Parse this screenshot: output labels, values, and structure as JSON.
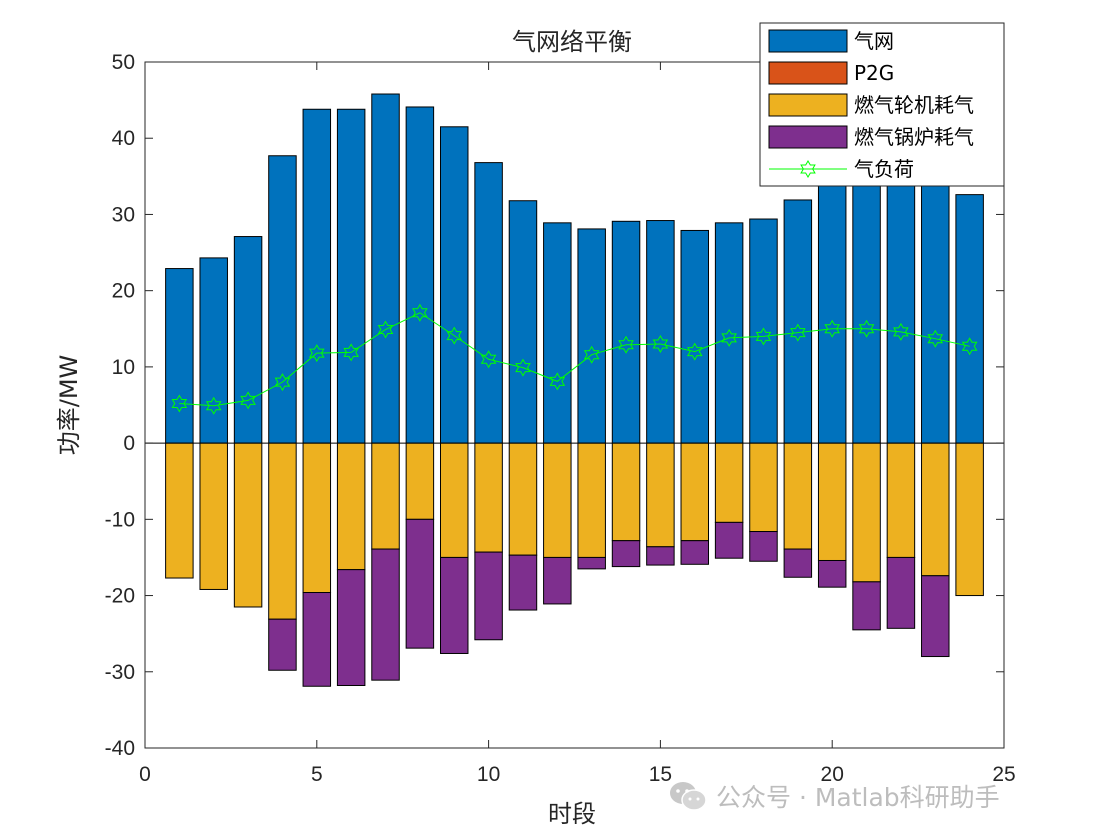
{
  "chart_data": {
    "type": "bar",
    "title": "气网络平衡",
    "xlabel": "时段",
    "ylabel": "功率/MW",
    "xlim": [
      0,
      25
    ],
    "ylim": [
      -40,
      50
    ],
    "xticks": [
      0,
      5,
      10,
      15,
      20,
      25
    ],
    "yticks": [
      -40,
      -30,
      -20,
      -10,
      0,
      10,
      20,
      30,
      40,
      50
    ],
    "x": [
      1,
      2,
      3,
      4,
      5,
      6,
      7,
      8,
      9,
      10,
      11,
      12,
      13,
      14,
      15,
      16,
      17,
      18,
      19,
      20,
      21,
      22,
      23,
      24
    ],
    "stacked": true,
    "legend_position": "top-right",
    "series": [
      {
        "name": "气网",
        "kind": "bar",
        "color": "#0072BD",
        "values": [
          22.9,
          24.3,
          27.1,
          37.7,
          43.8,
          43.8,
          45.8,
          44.1,
          41.5,
          36.8,
          31.8,
          28.9,
          28.1,
          29.1,
          29.2,
          27.9,
          28.9,
          29.4,
          31.9,
          34.9,
          37.4,
          37.3,
          36.2,
          32.6
        ]
      },
      {
        "name": "P2G",
        "kind": "bar",
        "color": "#D95319",
        "values": [
          0,
          0,
          0,
          0,
          0,
          0,
          0,
          0,
          0,
          0,
          0,
          0,
          0,
          0,
          0,
          0,
          0,
          0,
          0,
          0,
          0,
          0,
          0,
          0
        ]
      },
      {
        "name": "燃气轮机耗气",
        "kind": "bar",
        "color": "#EDB120",
        "values": [
          -17.7,
          -19.2,
          -21.5,
          -23.1,
          -19.6,
          -16.6,
          -13.9,
          -10.0,
          -15.0,
          -14.3,
          -14.7,
          -15.0,
          -15.0,
          -12.8,
          -13.6,
          -12.8,
          -10.4,
          -11.6,
          -13.9,
          -15.4,
          -18.2,
          -15.0,
          -17.4,
          -20.0
        ]
      },
      {
        "name": "燃气锅炉耗气",
        "kind": "bar",
        "color": "#7E2F8E",
        "values": [
          0,
          0,
          0,
          -6.7,
          -12.3,
          -15.2,
          -17.2,
          -16.9,
          -12.6,
          -11.5,
          -7.2,
          -6.1,
          -1.5,
          -3.4,
          -2.4,
          -3.1,
          -4.7,
          -3.9,
          -3.7,
          -3.5,
          -6.3,
          -9.3,
          -10.6,
          0
        ]
      },
      {
        "name": "气负荷",
        "kind": "line",
        "color": "#00FF00",
        "marker": "hexagram",
        "values": [
          5.2,
          4.9,
          5.6,
          8.0,
          11.8,
          11.9,
          14.9,
          17.1,
          14.1,
          11.0,
          9.9,
          8.1,
          11.6,
          12.9,
          13.0,
          12.0,
          13.8,
          14.0,
          14.5,
          15.0,
          15.0,
          14.6,
          13.7,
          12.7
        ]
      }
    ]
  },
  "watermark": {
    "text": "公众号 · Matlab科研助手",
    "icon": "wechat-icon"
  }
}
